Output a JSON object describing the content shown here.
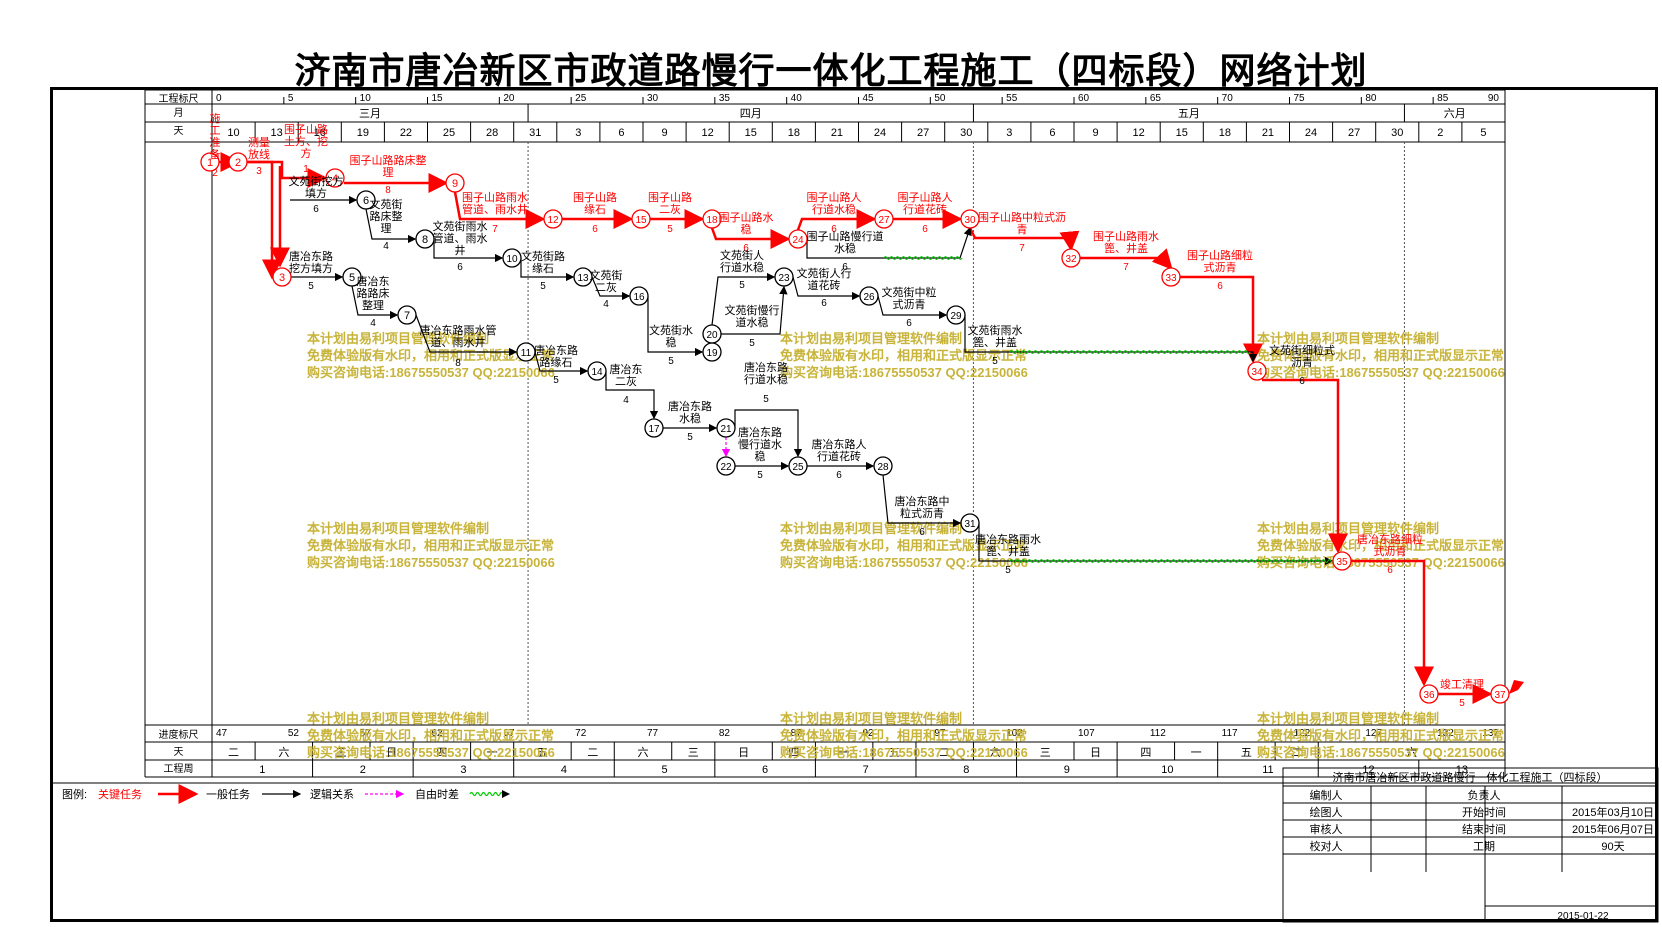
{
  "title": "济南市唐冶新区市政道路慢行一体化工程施工（四标段）网络计划",
  "scale_header": {
    "rows": [
      "工程标尺",
      "月",
      "天"
    ],
    "bottom_rows": [
      "进度标尺",
      "天",
      "工程周"
    ],
    "project_ticks": [
      "0",
      "5",
      "10",
      "15",
      "20",
      "25",
      "30",
      "35",
      "40",
      "45",
      "50",
      "55",
      "60",
      "65",
      "70",
      "75",
      "80",
      "85",
      "90"
    ],
    "months": [
      "三月",
      "四月",
      "五月",
      "六月"
    ],
    "days": [
      "10",
      "13",
      "16",
      "19",
      "22",
      "25",
      "28",
      "31",
      "3",
      "6",
      "9",
      "12",
      "15",
      "18",
      "21",
      "24",
      "27",
      "30",
      "3",
      "6",
      "9",
      "12",
      "15",
      "18",
      "21",
      "24",
      "27",
      "30",
      "2",
      "5"
    ],
    "progress_ticks": [
      "47",
      "52",
      "57",
      "62",
      "67",
      "72",
      "77",
      "82",
      "87",
      "92",
      "97",
      "102",
      "107",
      "112",
      "117",
      "122",
      "127",
      "132",
      "137"
    ],
    "weekdays": [
      "二",
      "六",
      "三",
      "日",
      "四",
      "一",
      "五",
      "二",
      "六",
      "三",
      "日",
      "四",
      "一",
      "五",
      "二",
      "六",
      "三",
      "日",
      "四",
      "一",
      "五",
      "二",
      "六"
    ],
    "weeks": [
      "1",
      "2",
      "3",
      "4",
      "5",
      "6",
      "7",
      "8",
      "9",
      "10",
      "11",
      "12",
      "13"
    ]
  },
  "nodes": [
    {
      "id": "1",
      "critical": true
    },
    {
      "id": "2",
      "critical": true
    },
    {
      "id": "3",
      "critical": true
    },
    {
      "id": "4",
      "critical": true
    },
    {
      "id": "5",
      "critical": false
    },
    {
      "id": "6",
      "critical": false
    },
    {
      "id": "7",
      "critical": false
    },
    {
      "id": "8",
      "critical": false
    },
    {
      "id": "9",
      "critical": true
    },
    {
      "id": "10",
      "critical": false
    },
    {
      "id": "11",
      "critical": false
    },
    {
      "id": "12",
      "critical": true
    },
    {
      "id": "13",
      "critical": false
    },
    {
      "id": "14",
      "critical": false
    },
    {
      "id": "15",
      "critical": true
    },
    {
      "id": "16",
      "critical": false
    },
    {
      "id": "17",
      "critical": false
    },
    {
      "id": "18",
      "critical": true
    },
    {
      "id": "19",
      "critical": false
    },
    {
      "id": "20",
      "critical": false
    },
    {
      "id": "21",
      "critical": false
    },
    {
      "id": "22",
      "critical": false
    },
    {
      "id": "23",
      "critical": false
    },
    {
      "id": "24",
      "critical": true
    },
    {
      "id": "25",
      "critical": false
    },
    {
      "id": "26",
      "critical": false
    },
    {
      "id": "27",
      "critical": true
    },
    {
      "id": "28",
      "critical": false
    },
    {
      "id": "29",
      "critical": false
    },
    {
      "id": "30",
      "critical": true
    },
    {
      "id": "31",
      "critical": false
    },
    {
      "id": "32",
      "critical": true
    },
    {
      "id": "33",
      "critical": true
    },
    {
      "id": "34",
      "critical": true
    },
    {
      "id": "35",
      "critical": true
    },
    {
      "id": "36",
      "critical": true
    },
    {
      "id": "37",
      "critical": true
    }
  ],
  "tasks": [
    {
      "label": "施工准备",
      "duration": "2",
      "critical": true
    },
    {
      "label": "测量放线",
      "duration": "3",
      "critical": true
    },
    {
      "label": "围子山路土方、挖方",
      "duration": "1",
      "critical": true
    },
    {
      "label": "围子山路路床整理",
      "duration": "8",
      "critical": true
    },
    {
      "label": "文苑街挖方填方",
      "duration": "6",
      "critical": false
    },
    {
      "label": "文苑街路床整理",
      "duration": "4",
      "critical": false
    },
    {
      "label": "文苑街雨水管道、雨水井",
      "duration": "6",
      "critical": false
    },
    {
      "label": "唐冶东路挖方填方",
      "duration": "5",
      "critical": false
    },
    {
      "label": "唐冶东路路床整理",
      "duration": "4",
      "critical": false
    },
    {
      "label": "唐冶东路雨水管道、雨水井",
      "duration": "8",
      "critical": false
    },
    {
      "label": "围子山路雨水管道、雨水井",
      "duration": "7",
      "critical": true
    },
    {
      "label": "围子山路缘石",
      "duration": "6",
      "critical": true
    },
    {
      "label": "围子山路二灰",
      "duration": "5",
      "critical": true
    },
    {
      "label": "围子山路水稳",
      "duration": "6",
      "critical": true
    },
    {
      "label": "围子山路人行道水稳",
      "duration": "6",
      "critical": true
    },
    {
      "label": "围子山路人行道花砖",
      "duration": "6",
      "critical": true
    },
    {
      "label": "围子山路慢行道水稳",
      "duration": "6",
      "critical": false
    },
    {
      "label": "文苑街路缘石",
      "duration": "5",
      "critical": false
    },
    {
      "label": "文苑街二灰",
      "duration": "4",
      "critical": false
    },
    {
      "label": "文苑街水稳",
      "duration": "5",
      "critical": false
    },
    {
      "label": "文苑街人行道水稳",
      "duration": "5",
      "critical": false
    },
    {
      "label": "文苑街慢行道水稳",
      "duration": "5",
      "critical": false
    },
    {
      "label": "文苑街人行道花砖",
      "duration": "6",
      "critical": false
    },
    {
      "label": "文苑街中粒式沥青",
      "duration": "6",
      "critical": false
    },
    {
      "label": "文苑街雨水篦、井盖",
      "duration": "5",
      "critical": false
    },
    {
      "label": "唐冶东路路缘石",
      "duration": "5",
      "critical": false
    },
    {
      "label": "唐冶东路二灰",
      "duration": "4",
      "critical": false
    },
    {
      "label": "唐冶东路水稳",
      "duration": "5",
      "critical": false
    },
    {
      "label": "唐冶东路行道水稳",
      "duration": "5",
      "critical": false
    },
    {
      "label": "唐冶东路慢行道水稳",
      "duration": "5",
      "critical": false
    },
    {
      "label": "唐冶东路人行道花砖",
      "duration": "6",
      "critical": false
    },
    {
      "label": "唐冶东路中粒式沥青",
      "duration": "6",
      "critical": false
    },
    {
      "label": "唐冶东路雨水篦、井盖",
      "duration": "5",
      "critical": false
    },
    {
      "label": "围子山路中粒式沥青",
      "duration": "7",
      "critical": true
    },
    {
      "label": "围子山路雨水篦、井盖",
      "duration": "7",
      "critical": true
    },
    {
      "label": "围子山路细粒式沥青",
      "duration": "6",
      "critical": true
    },
    {
      "label": "文苑街细粒式沥青",
      "duration": "6",
      "critical": false
    },
    {
      "label": "唐冶东路细粒式沥青",
      "duration": "6",
      "critical": true
    },
    {
      "label": "竣工清理",
      "duration": "5",
      "critical": true
    }
  ],
  "watermark": [
    "本计划由易利项目管理软件编制",
    "免费体验版有水印，相用和正式版显示正常",
    "购买咨询电话:18675550537 QQ:22150066"
  ],
  "legend": {
    "label": "图例:",
    "items": [
      "关键任务",
      "一般任务",
      "逻辑关系",
      "自由时差"
    ]
  },
  "info_block": {
    "title": "济南市唐冶新区市政道路慢行一体化工程施工（四标段）",
    "rows": [
      {
        "left": "编制人",
        "mid": "负责人",
        "right": ""
      },
      {
        "left": "绘图人",
        "mid": "开始时间",
        "right": "2015年03月10日"
      },
      {
        "left": "审核人",
        "mid": "结束时间",
        "right": "2015年06月07日"
      },
      {
        "left": "校对人",
        "mid": "工期",
        "right": "90天"
      }
    ],
    "date": "2015-01-22"
  },
  "colors": {
    "critical": "#ff0000",
    "normal": "#000000",
    "logic": "#ff00ff",
    "float": "#00cc00",
    "watermark": "#c8b43a"
  }
}
